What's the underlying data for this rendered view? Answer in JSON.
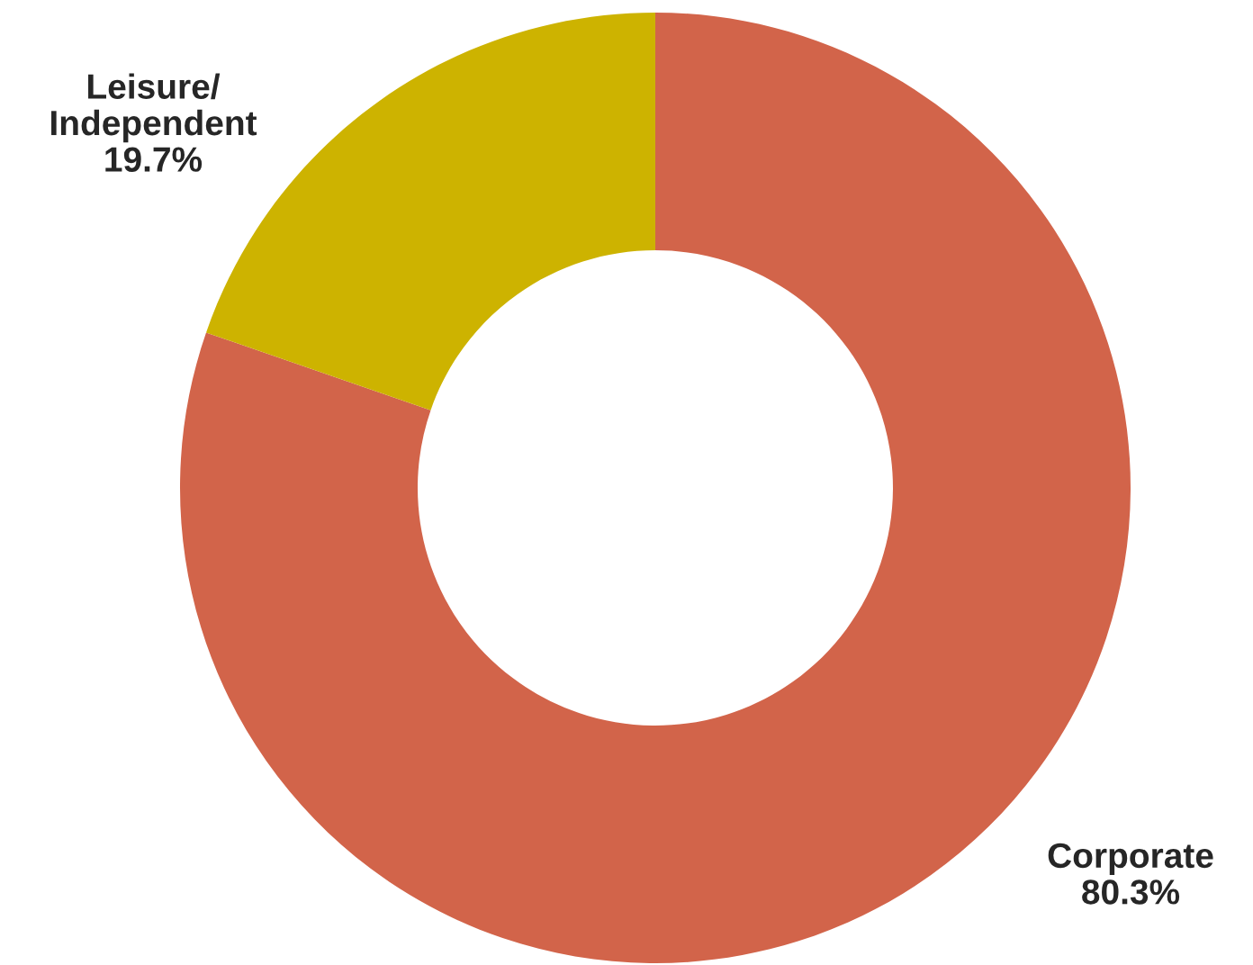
{
  "chart_data": {
    "type": "donut",
    "categories": [
      "Corporate",
      "Leisure/\nIndependent"
    ],
    "values": [
      80.3,
      19.7
    ],
    "colors": [
      "#d2644a",
      "#cdb300"
    ],
    "value_labels": [
      "80.3%",
      "19.7%"
    ]
  }
}
